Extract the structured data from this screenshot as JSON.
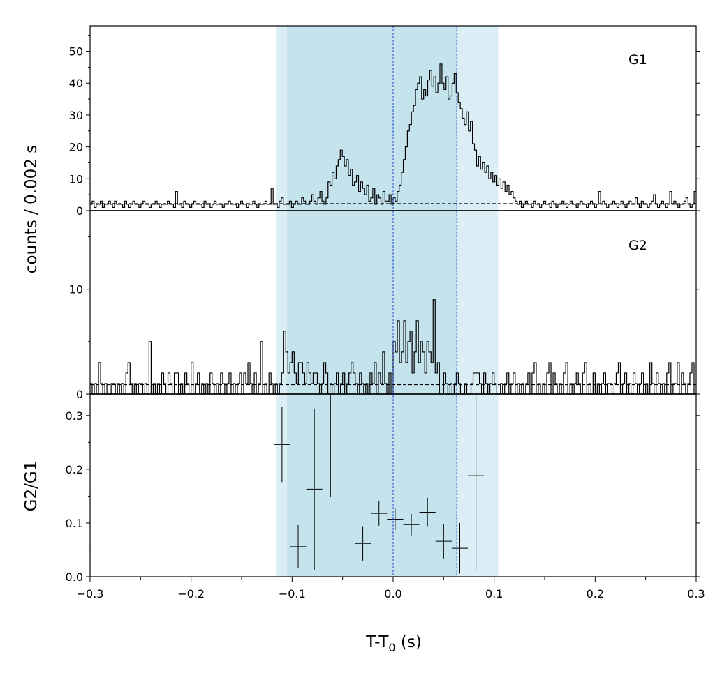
{
  "chart_data": {
    "type": "step-histogram",
    "x_label_main": "T-T",
    "x_label_sub": "0",
    "x_label_unit": " (s)",
    "y_label_shared": "counts /  0.002 s",
    "xlim": [
      -0.3,
      0.3
    ],
    "x_ticks": [
      {
        "v": -0.3,
        "label": "−0.3"
      },
      {
        "v": -0.2,
        "label": "−0.2"
      },
      {
        "v": -0.1,
        "label": "−0.1"
      },
      {
        "v": 0.0,
        "label": "0.0"
      },
      {
        "v": 0.1,
        "label": "0.1"
      },
      {
        "v": 0.2,
        "label": "0.2"
      },
      {
        "v": 0.3,
        "label": "0.3"
      }
    ],
    "bin_width": 0.002,
    "shaded_intervals": [
      {
        "x0": -0.116,
        "x1": 0.104,
        "color": "#dceef5"
      },
      {
        "x0": -0.105,
        "x1": 0.064,
        "color": "#c5e3ec"
      }
    ],
    "vertical_lines": [
      {
        "x": 0.0,
        "color": "#1f3fd6"
      },
      {
        "x": 0.063,
        "color": "#1f3fd6"
      }
    ],
    "panels": [
      {
        "name": "G1",
        "ylim": [
          0,
          58
        ],
        "y_ticks": [
          {
            "v": 0,
            "label": "0"
          },
          {
            "v": 10,
            "label": "10"
          },
          {
            "v": 20,
            "label": "20"
          },
          {
            "v": 30,
            "label": "30"
          },
          {
            "v": 40,
            "label": "40"
          },
          {
            "v": 50,
            "label": "50"
          }
        ],
        "background_level": 2.2,
        "counts": [
          2,
          3,
          1,
          2,
          2,
          3,
          1,
          2,
          2,
          3,
          2,
          1,
          3,
          2,
          2,
          2,
          1,
          3,
          2,
          1,
          2,
          3,
          2,
          2,
          1,
          2,
          3,
          2,
          2,
          1,
          2,
          2,
          3,
          2,
          1,
          2,
          2,
          2,
          3,
          2,
          2,
          1,
          6,
          2,
          2,
          1,
          3,
          2,
          2,
          1,
          2,
          3,
          2,
          2,
          2,
          1,
          3,
          2,
          2,
          1,
          2,
          3,
          2,
          2,
          2,
          1,
          2,
          2,
          3,
          2,
          2,
          2,
          1,
          2,
          3,
          2,
          2,
          1,
          2,
          2,
          3,
          2,
          1,
          2,
          2,
          2,
          3,
          2,
          2,
          7,
          2,
          2,
          1,
          3,
          4,
          2,
          2,
          2,
          3,
          1,
          2,
          3,
          2,
          2,
          4,
          3,
          2,
          2,
          3,
          5,
          3,
          2,
          4,
          6,
          3,
          2,
          4,
          9,
          8,
          12,
          10,
          14,
          16,
          19,
          17,
          14,
          16,
          11,
          13,
          8,
          9,
          11,
          6,
          9,
          7,
          5,
          8,
          3,
          4,
          7,
          2,
          5,
          4,
          2,
          6,
          3,
          3,
          5,
          2,
          4,
          3,
          6,
          8,
          12,
          16,
          20,
          25,
          27,
          31,
          33,
          38,
          40,
          42,
          35,
          38,
          36,
          41,
          44,
          39,
          42,
          37,
          40,
          46,
          40,
          38,
          42,
          35,
          36,
          40,
          43,
          37,
          34,
          32,
          29,
          27,
          31,
          25,
          28,
          21,
          19,
          14,
          17,
          13,
          15,
          12,
          14,
          10,
          12,
          9,
          11,
          8,
          10,
          7,
          9,
          6,
          8,
          5,
          6,
          4,
          3,
          2,
          3,
          1,
          2,
          3,
          2,
          2,
          1,
          3,
          2,
          2,
          1,
          2,
          3,
          2,
          2,
          1,
          3,
          2,
          1,
          2,
          2,
          3,
          2,
          1,
          2,
          3,
          2,
          2,
          1,
          2,
          3,
          2,
          2,
          1,
          2,
          3,
          2,
          1,
          2,
          6,
          2,
          3,
          2,
          1,
          2,
          2,
          3,
          2,
          1,
          2,
          3,
          2,
          1,
          2,
          3,
          2,
          2,
          4,
          2,
          1,
          3,
          2,
          2,
          1,
          2,
          3,
          5,
          2,
          1,
          2,
          3,
          2,
          1,
          2,
          6,
          2,
          3,
          2,
          1,
          2,
          2,
          3,
          4,
          2,
          1,
          2,
          6
        ]
      },
      {
        "name": "G2",
        "ylim": [
          0,
          17.5
        ],
        "y_ticks": [
          {
            "v": 0,
            "label": "0"
          },
          {
            "v": 10,
            "label": "10"
          }
        ],
        "background_level": 0.9,
        "counts": [
          1,
          0,
          1,
          0,
          3,
          1,
          0,
          1,
          0,
          0,
          1,
          1,
          0,
          1,
          0,
          1,
          0,
          2,
          3,
          1,
          0,
          1,
          0,
          1,
          1,
          0,
          1,
          0,
          5,
          0,
          1,
          0,
          1,
          0,
          2,
          1,
          0,
          2,
          1,
          0,
          2,
          2,
          0,
          1,
          0,
          2,
          1,
          0,
          3,
          0,
          1,
          2,
          0,
          1,
          0,
          1,
          0,
          2,
          1,
          0,
          1,
          0,
          2,
          1,
          0,
          1,
          2,
          0,
          1,
          0,
          1,
          2,
          0,
          2,
          1,
          3,
          1,
          0,
          2,
          0,
          1,
          5,
          0,
          1,
          0,
          2,
          1,
          0,
          1,
          0,
          1,
          2,
          6,
          4,
          2,
          3,
          4,
          2,
          1,
          3,
          3,
          2,
          1,
          3,
          2,
          1,
          2,
          2,
          1,
          0,
          1,
          3,
          2,
          0,
          1,
          0,
          1,
          2,
          0,
          1,
          2,
          0,
          1,
          2,
          3,
          2,
          1,
          0,
          2,
          1,
          0,
          1,
          0,
          2,
          1,
          3,
          0,
          2,
          1,
          4,
          1,
          0,
          2,
          0,
          5,
          4,
          7,
          3,
          4,
          7,
          3,
          5,
          6,
          2,
          4,
          7,
          3,
          5,
          4,
          2,
          5,
          4,
          3,
          9,
          2,
          3,
          0,
          0,
          2,
          1,
          0,
          1,
          0,
          1,
          2,
          1,
          0,
          0,
          1,
          0,
          0,
          1,
          2,
          2,
          2,
          1,
          0,
          2,
          1,
          0,
          1,
          2,
          1,
          0,
          0,
          1,
          0,
          1,
          2,
          0,
          1,
          2,
          0,
          1,
          0,
          1,
          0,
          1,
          2,
          0,
          2,
          3,
          0,
          1,
          0,
          1,
          0,
          2,
          3,
          0,
          2,
          1,
          0,
          1,
          0,
          2,
          3,
          0,
          1,
          0,
          1,
          2,
          1,
          0,
          2,
          3,
          0,
          1,
          0,
          2,
          0,
          1,
          0,
          1,
          2,
          0,
          1,
          1,
          0,
          1,
          2,
          3,
          0,
          1,
          2,
          0,
          1,
          0,
          2,
          1,
          0,
          1,
          2,
          0,
          1,
          0,
          3,
          1,
          0,
          2,
          1,
          0,
          1,
          0,
          2,
          3,
          0,
          1,
          1,
          3,
          0,
          2,
          1,
          0,
          1,
          2,
          3,
          0
        ]
      },
      {
        "name": "G2/G1",
        "ylim": [
          0,
          0.34
        ],
        "y_ticks": [
          {
            "v": 0.0,
            "label": "0.0"
          },
          {
            "v": 0.1,
            "label": "0.1"
          },
          {
            "v": 0.2,
            "label": "0.2"
          },
          {
            "v": 0.3,
            "label": "0.3"
          }
        ],
        "points": [
          {
            "x": -0.11,
            "xerr": 0.008,
            "y": 0.246,
            "ylo": 0.176,
            "yhi": 0.316
          },
          {
            "x": -0.094,
            "xerr": 0.008,
            "y": 0.056,
            "ylo": 0.016,
            "yhi": 0.096
          },
          {
            "x": -0.078,
            "xerr": 0.008,
            "y": 0.163,
            "ylo": 0.013,
            "yhi": 0.313
          },
          {
            "x": -0.062,
            "xerr": 0.008,
            "y": 0.345,
            "ylo": 0.148,
            "yhi": 0.345
          },
          {
            "x": -0.03,
            "xerr": 0.008,
            "y": 0.062,
            "ylo": 0.03,
            "yhi": 0.094
          },
          {
            "x": -0.014,
            "xerr": 0.008,
            "y": 0.118,
            "ylo": 0.095,
            "yhi": 0.141
          },
          {
            "x": 0.002,
            "xerr": 0.008,
            "y": 0.107,
            "ylo": 0.087,
            "yhi": 0.127
          },
          {
            "x": 0.018,
            "xerr": 0.008,
            "y": 0.097,
            "ylo": 0.077,
            "yhi": 0.117
          },
          {
            "x": 0.034,
            "xerr": 0.008,
            "y": 0.12,
            "ylo": 0.094,
            "yhi": 0.147
          },
          {
            "x": 0.05,
            "xerr": 0.008,
            "y": 0.066,
            "ylo": 0.034,
            "yhi": 0.098
          },
          {
            "x": 0.066,
            "xerr": 0.008,
            "y": 0.053,
            "ylo": 0.006,
            "yhi": 0.1
          },
          {
            "x": 0.082,
            "xerr": 0.008,
            "y": 0.188,
            "ylo": 0.012,
            "yhi": 0.345
          }
        ]
      }
    ]
  }
}
